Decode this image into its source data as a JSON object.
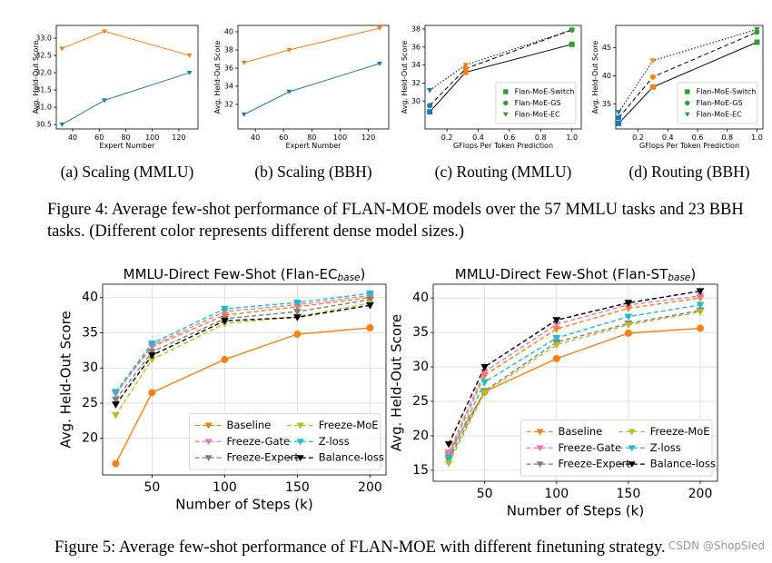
{
  "chart_data": [
    {
      "type": "line",
      "caption": "(a) Scaling (MMLU)",
      "xlabel": "Expert Number",
      "ylabel": "Avg. Held-Out Score",
      "x": [
        32,
        64,
        128
      ],
      "xlim": [
        27.7,
        134.4
      ],
      "xticks": [
        40,
        60,
        80,
        100,
        120
      ],
      "ylim": [
        30.37,
        33.37
      ],
      "yticks": [
        30.5,
        {
          "value": 31,
          "label": "31.0"
        },
        31.5,
        {
          "value": 32,
          "label": "32.0"
        },
        32.5,
        {
          "value": 33,
          "label": "33.0"
        }
      ],
      "grid": false,
      "series": [
        {
          "color": "#ff7f0e",
          "marker": "v",
          "linestyle": "solid",
          "values": [
            32.7,
            33.2,
            32.5
          ]
        },
        {
          "color": "#1f77b4",
          "marker": "v",
          "linestyle": "solid",
          "values": [
            30.5,
            31.2,
            32.0
          ]
        }
      ]
    },
    {
      "type": "line",
      "caption": "(b) Scaling (BBH)",
      "xlabel": "Expert Number",
      "ylabel": "Avg. Held-Out Score",
      "x": [
        32,
        64,
        128
      ],
      "xlim": [
        27.7,
        134.4
      ],
      "xticks": [
        40,
        60,
        80,
        100,
        120
      ],
      "ylim": [
        29.3,
        40.7
      ],
      "yticks": [
        32,
        34,
        36,
        38,
        40
      ],
      "grid": false,
      "series": [
        {
          "color": "#ff7f0e",
          "marker": "v",
          "linestyle": "solid",
          "values": [
            36.6,
            38.0,
            40.4
          ]
        },
        {
          "color": "#1f77b4",
          "marker": "v",
          "linestyle": "solid",
          "values": [
            30.9,
            33.4,
            36.5
          ]
        }
      ]
    },
    {
      "type": "line",
      "caption": "(c) Routing (MMLU)",
      "xlabel": "GFlops Per Token Prediction",
      "ylabel": "Avg. Held-Out Score",
      "x": [
        0.09,
        0.32,
        1.0
      ],
      "xlim": [
        0.06,
        1.06
      ],
      "xticks": [
        0.2,
        0.4,
        0.6,
        0.8,
        {
          "value": 1,
          "label": "1.0"
        }
      ],
      "ylim": [
        26.9,
        38.4
      ],
      "yticks": [
        30,
        32,
        34,
        36,
        38
      ],
      "grid": false,
      "legend": "lower right",
      "legend_marker_only": true,
      "point_colors": [
        "#1f77b4",
        "#ff7f0e",
        "#2ca02c"
      ],
      "series": [
        {
          "name": "Flan-MoE-Switch",
          "color": "#2ca02c",
          "line_color": "#000000",
          "marker": "s",
          "linestyle": "solid",
          "values": [
            28.8,
            33.2,
            36.3
          ]
        },
        {
          "name": "Flan-MoE-GS",
          "color": "#2ca02c",
          "line_color": "#000000",
          "marker": "o",
          "linestyle": "dashed",
          "values": [
            29.5,
            33.6,
            37.9
          ]
        },
        {
          "name": "Flan-MoE-EC",
          "color": "#2ca02c",
          "line_color": "#000000",
          "marker": "v",
          "linestyle": "dotted",
          "values": [
            31.2,
            34.0,
            37.9
          ]
        }
      ]
    },
    {
      "type": "line",
      "caption": "(d) Routing (BBH)",
      "xlabel": "GFlops Per Token Prediction",
      "ylabel": "Avg. Held-Out Score",
      "x": [
        0.07,
        0.3,
        1.0
      ],
      "xlim": [
        0.05,
        1.04
      ],
      "xticks": [
        0.2,
        0.4,
        0.6,
        0.8,
        {
          "value": 1,
          "label": "1.0"
        }
      ],
      "ylim": [
        30.5,
        49
      ],
      "yticks": [
        35,
        40,
        45
      ],
      "grid": false,
      "legend": "lower right",
      "legend_marker_only": true,
      "point_colors": [
        "#1f77b4",
        "#ff7f0e",
        "#2ca02c"
      ],
      "series": [
        {
          "name": "Flan-MoE-Switch",
          "color": "#2ca02c",
          "line_color": "#000000",
          "marker": "s",
          "linestyle": "solid",
          "values": [
            31.5,
            38.0,
            46.0
          ]
        },
        {
          "name": "Flan-MoE-GS",
          "color": "#2ca02c",
          "line_color": "#000000",
          "marker": "o",
          "linestyle": "dashed",
          "values": [
            32.5,
            39.8,
            47.8
          ]
        },
        {
          "name": "Flan-MoE-EC",
          "color": "#2ca02c",
          "line_color": "#000000",
          "marker": "v",
          "linestyle": "dotted",
          "values": [
            33.5,
            42.7,
            48.3
          ]
        }
      ]
    },
    {
      "type": "line",
      "title": "MMLU-Direct Few-Shot (Flan-EC",
      "title_subscript": "base",
      "title_end": ")",
      "xlabel": "Number of Steps (k)",
      "ylabel": "Avg. Held-Out Score",
      "x": [
        25,
        50,
        100,
        150,
        200
      ],
      "xlim": [
        16,
        211
      ],
      "xticks": [
        50,
        100,
        150,
        200
      ],
      "ylim": [
        14.8,
        41.9
      ],
      "yticks": [
        20,
        25,
        30,
        35,
        40
      ],
      "grid": true,
      "legend": "lower right",
      "legend_columns": 2,
      "series": [
        {
          "color": "#ff7f0e",
          "marker": "o",
          "linestyle": "solid",
          "values": [
            16.4,
            26.5,
            31.2,
            34.8,
            35.7
          ]
        },
        {
          "name": "Baseline",
          "color": "#ff7f0e",
          "marker": "v",
          "linestyle": "dashed",
          "values": [
            26.5,
            33.0,
            37.5,
            38.7,
            40.0
          ]
        },
        {
          "name": "Freeze-Gate",
          "color": "#e377c2",
          "marker": "v",
          "linestyle": "dashed",
          "values": [
            26.3,
            33.2,
            38.0,
            39.0,
            40.3
          ]
        },
        {
          "name": "Freeze-Expert",
          "color": "#7f7f7f",
          "marker": "v",
          "linestyle": "dashed",
          "values": [
            25.5,
            32.3,
            37.0,
            38.0,
            39.7
          ]
        },
        {
          "name": "Freeze-MoE",
          "color": "#bcbd22",
          "marker": "v",
          "linestyle": "dashed",
          "values": [
            23.3,
            31.2,
            36.3,
            37.3,
            39.2
          ]
        },
        {
          "name": "Z-loss",
          "color": "#17becf",
          "marker": "v",
          "linestyle": "dashed",
          "values": [
            26.6,
            33.5,
            38.4,
            39.3,
            40.6
          ]
        },
        {
          "name": "Balance-loss",
          "color": "#000000",
          "marker": "v",
          "linestyle": "dashed",
          "values": [
            24.8,
            31.8,
            36.7,
            37.2,
            38.9
          ]
        }
      ]
    },
    {
      "type": "line",
      "title": "MMLU-Direct Few-Shot (Flan-ST",
      "title_subscript": "base",
      "title_end": ")",
      "xlabel": "Number of Steps (k)",
      "ylabel": "Avg. Held-Out Score",
      "x": [
        25,
        50,
        100,
        150,
        200
      ],
      "xlim": [
        14.2,
        212
      ],
      "xticks": [
        50,
        100,
        150,
        200
      ],
      "ylim": [
        13.4,
        42
      ],
      "yticks": [
        15,
        20,
        25,
        30,
        35,
        40
      ],
      "grid": true,
      "legend": "lower right",
      "legend_columns": 2,
      "series": [
        {
          "color": "#ff7f0e",
          "marker": "o",
          "linestyle": "solid",
          "values": [
            17.5,
            26.4,
            31.2,
            34.9,
            35.6
          ]
        },
        {
          "name": "Baseline",
          "color": "#ff7f0e",
          "marker": "v",
          "linestyle": "dashed",
          "values": [
            17.3,
            28.8,
            35.5,
            38.5,
            40.0
          ]
        },
        {
          "name": "Freeze-Gate",
          "color": "#e377c2",
          "marker": "v",
          "linestyle": "dashed",
          "values": [
            17.6,
            29.3,
            36.2,
            39.0,
            40.3
          ]
        },
        {
          "name": "Freeze-Expert",
          "color": "#7f7f7f",
          "marker": "v",
          "linestyle": "dashed",
          "values": [
            16.5,
            26.5,
            33.6,
            36.3,
            38.2
          ]
        },
        {
          "name": "Freeze-MoE",
          "color": "#bcbd22",
          "marker": "v",
          "linestyle": "dashed",
          "values": [
            16.0,
            26.3,
            33.2,
            36.1,
            38.0
          ]
        },
        {
          "name": "Z-loss",
          "color": "#17becf",
          "marker": "v",
          "linestyle": "dashed",
          "values": [
            16.8,
            27.8,
            34.2,
            37.3,
            39.0
          ]
        },
        {
          "name": "Balance-loss",
          "color": "#000000",
          "marker": "v",
          "linestyle": "dashed",
          "values": [
            18.8,
            30.0,
            36.8,
            39.3,
            41.0
          ]
        }
      ]
    }
  ],
  "figure_captions": [
    "Figure 4: Average few-shot performance of FLAN-MOE models over the 57 MMLU tasks and 23 BBH tasks. (Different color represents different dense model sizes.)",
    "Figure 5: Average few-shot performance of FLAN-MOE with different finetuning strategy."
  ],
  "watermark": "CSDN @ShopSled"
}
